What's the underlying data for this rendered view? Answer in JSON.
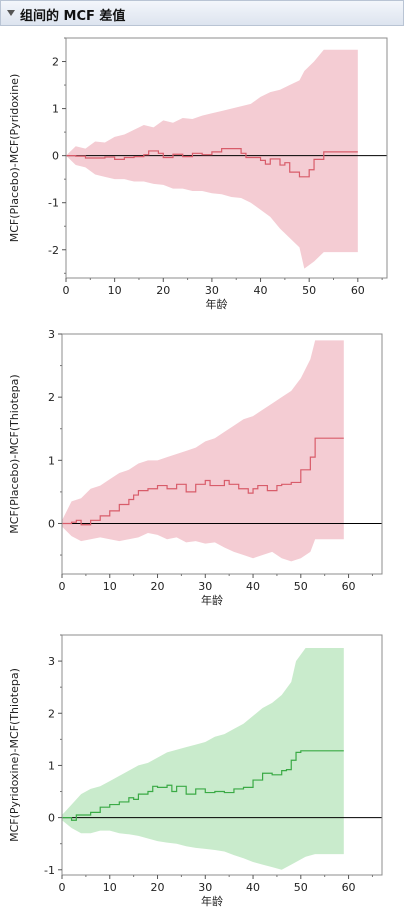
{
  "panel": {
    "title": "组间的 MCF 差值"
  },
  "colors": {
    "band_red": "#f4ccd3",
    "line_red": "#d85c6a",
    "band_green": "#c9ebcc",
    "line_green": "#3aaa45",
    "zero_line": "#000000",
    "frame": "#8c8c8c"
  },
  "chart_data": [
    {
      "type": "line",
      "xlabel": "年龄",
      "ylabel": "MCF(Placebo)-MCF(Pyridoxine)",
      "xlim": [
        0,
        66
      ],
      "ylim": [
        -2.6,
        2.5
      ],
      "xticks": [
        0,
        10,
        20,
        30,
        40,
        50,
        60
      ],
      "yticks": [
        -2,
        -1,
        0,
        1,
        2
      ],
      "color": "red",
      "series": [
        {
          "x": [
            0,
            2,
            4,
            8,
            10,
            12,
            14,
            16,
            17,
            19,
            20,
            22,
            24,
            26,
            28,
            30,
            32,
            36,
            37,
            40,
            41,
            42,
            44,
            45,
            46,
            48,
            50,
            51,
            53,
            60
          ],
          "y": [
            0,
            -0.01,
            -0.05,
            -0.03,
            -0.08,
            -0.04,
            -0.02,
            0.02,
            0.1,
            0.05,
            -0.04,
            0.03,
            -0.02,
            0.05,
            0.02,
            0.08,
            0.15,
            0.05,
            -0.04,
            -0.1,
            -0.18,
            -0.07,
            -0.2,
            -0.15,
            -0.35,
            -0.45,
            -0.3,
            -0.08,
            0.08,
            0.08
          ]
        },
        {
          "x": [
            0,
            2,
            4,
            6,
            8,
            10,
            12,
            14,
            16,
            18,
            20,
            22,
            24,
            26,
            28,
            30,
            32,
            34,
            36,
            38,
            40,
            42,
            44,
            46,
            48,
            49,
            51,
            53,
            60
          ],
          "upper": [
            0,
            0.2,
            0.15,
            0.3,
            0.28,
            0.4,
            0.45,
            0.55,
            0.65,
            0.6,
            0.75,
            0.7,
            0.8,
            0.78,
            0.85,
            0.9,
            0.95,
            1.0,
            1.05,
            1.1,
            1.25,
            1.35,
            1.4,
            1.5,
            1.6,
            1.8,
            2.0,
            2.25,
            2.25
          ],
          "lower": [
            0,
            -0.2,
            -0.25,
            -0.4,
            -0.45,
            -0.5,
            -0.5,
            -0.55,
            -0.55,
            -0.6,
            -0.62,
            -0.7,
            -0.7,
            -0.75,
            -0.75,
            -0.8,
            -0.82,
            -0.88,
            -0.9,
            -1.0,
            -1.15,
            -1.3,
            -1.55,
            -1.75,
            -1.95,
            -2.4,
            -2.25,
            -2.05,
            -2.05
          ]
        }
      ]
    },
    {
      "type": "line",
      "xlabel": "年龄",
      "ylabel": "MCF(Placebo)-MCF(Thiotepa)",
      "xlim": [
        0,
        67
      ],
      "ylim": [
        -0.8,
        3.0
      ],
      "xticks": [
        0,
        10,
        20,
        30,
        40,
        50,
        60
      ],
      "yticks": [
        0,
        1,
        2,
        3
      ],
      "color": "red",
      "series": [
        {
          "x": [
            0,
            2,
            3,
            4,
            6,
            8,
            10,
            12,
            14,
            15,
            16,
            18,
            20,
            22,
            24,
            26,
            28,
            30,
            31,
            34,
            35,
            37,
            39,
            40,
            41,
            43,
            45,
            46,
            48,
            50,
            52,
            53,
            59
          ],
          "y": [
            0,
            0.02,
            0.05,
            -0.02,
            0.05,
            0.12,
            0.2,
            0.3,
            0.38,
            0.45,
            0.52,
            0.55,
            0.6,
            0.55,
            0.62,
            0.5,
            0.62,
            0.68,
            0.6,
            0.68,
            0.62,
            0.55,
            0.48,
            0.55,
            0.6,
            0.52,
            0.6,
            0.62,
            0.65,
            0.85,
            1.05,
            1.35,
            1.35
          ]
        },
        {
          "x": [
            0,
            2,
            4,
            6,
            8,
            10,
            12,
            14,
            16,
            18,
            20,
            22,
            24,
            26,
            28,
            30,
            32,
            34,
            36,
            38,
            40,
            42,
            44,
            46,
            48,
            50,
            52,
            53,
            59
          ],
          "upper": [
            0.05,
            0.35,
            0.4,
            0.55,
            0.6,
            0.7,
            0.8,
            0.85,
            0.95,
            1.0,
            1.0,
            1.05,
            1.1,
            1.15,
            1.2,
            1.3,
            1.35,
            1.45,
            1.55,
            1.65,
            1.7,
            1.8,
            1.9,
            2.0,
            2.1,
            2.3,
            2.6,
            2.9,
            2.9
          ],
          "lower": [
            -0.05,
            -0.2,
            -0.28,
            -0.25,
            -0.22,
            -0.25,
            -0.28,
            -0.25,
            -0.22,
            -0.15,
            -0.18,
            -0.25,
            -0.22,
            -0.3,
            -0.28,
            -0.32,
            -0.3,
            -0.38,
            -0.45,
            -0.5,
            -0.55,
            -0.5,
            -0.45,
            -0.55,
            -0.6,
            -0.55,
            -0.45,
            -0.25,
            -0.25
          ]
        }
      ]
    },
    {
      "type": "line",
      "xlabel": "年龄",
      "ylabel": "MCF(Pyridoxine)-MCF(Thiotepa)",
      "xlim": [
        0,
        67
      ],
      "ylim": [
        -1.1,
        3.5
      ],
      "xticks": [
        0,
        10,
        20,
        30,
        40,
        50,
        60
      ],
      "yticks": [
        -1,
        0,
        1,
        2,
        3
      ],
      "color": "green",
      "series": [
        {
          "x": [
            0,
            2,
            3,
            6,
            8,
            10,
            12,
            14,
            15,
            16,
            18,
            19,
            20,
            22,
            23,
            24,
            26,
            28,
            30,
            32,
            34,
            36,
            38,
            40,
            42,
            44,
            46,
            47,
            48,
            49,
            50,
            53,
            59
          ],
          "y": [
            0,
            -0.05,
            0.05,
            0.1,
            0.2,
            0.25,
            0.3,
            0.38,
            0.35,
            0.45,
            0.5,
            0.6,
            0.58,
            0.62,
            0.5,
            0.6,
            0.45,
            0.55,
            0.48,
            0.5,
            0.48,
            0.55,
            0.58,
            0.72,
            0.85,
            0.82,
            0.9,
            0.92,
            1.1,
            1.25,
            1.28,
            1.28,
            1.28
          ]
        },
        {
          "x": [
            0,
            2,
            4,
            6,
            8,
            10,
            12,
            14,
            16,
            18,
            20,
            22,
            24,
            26,
            28,
            30,
            32,
            34,
            36,
            38,
            40,
            42,
            44,
            46,
            48,
            49,
            51,
            53,
            59
          ],
          "upper": [
            0.05,
            0.25,
            0.45,
            0.55,
            0.6,
            0.7,
            0.8,
            0.9,
            1.0,
            1.05,
            1.15,
            1.25,
            1.3,
            1.35,
            1.4,
            1.45,
            1.55,
            1.6,
            1.7,
            1.8,
            1.95,
            2.1,
            2.2,
            2.35,
            2.6,
            3.0,
            3.25,
            3.25,
            3.25
          ],
          "lower": [
            -0.05,
            -0.2,
            -0.3,
            -0.3,
            -0.25,
            -0.25,
            -0.3,
            -0.32,
            -0.35,
            -0.4,
            -0.45,
            -0.48,
            -0.5,
            -0.55,
            -0.58,
            -0.6,
            -0.62,
            -0.65,
            -0.72,
            -0.78,
            -0.85,
            -0.9,
            -0.95,
            -1.0,
            -0.9,
            -0.85,
            -0.75,
            -0.7,
            -0.7
          ]
        }
      ]
    }
  ]
}
